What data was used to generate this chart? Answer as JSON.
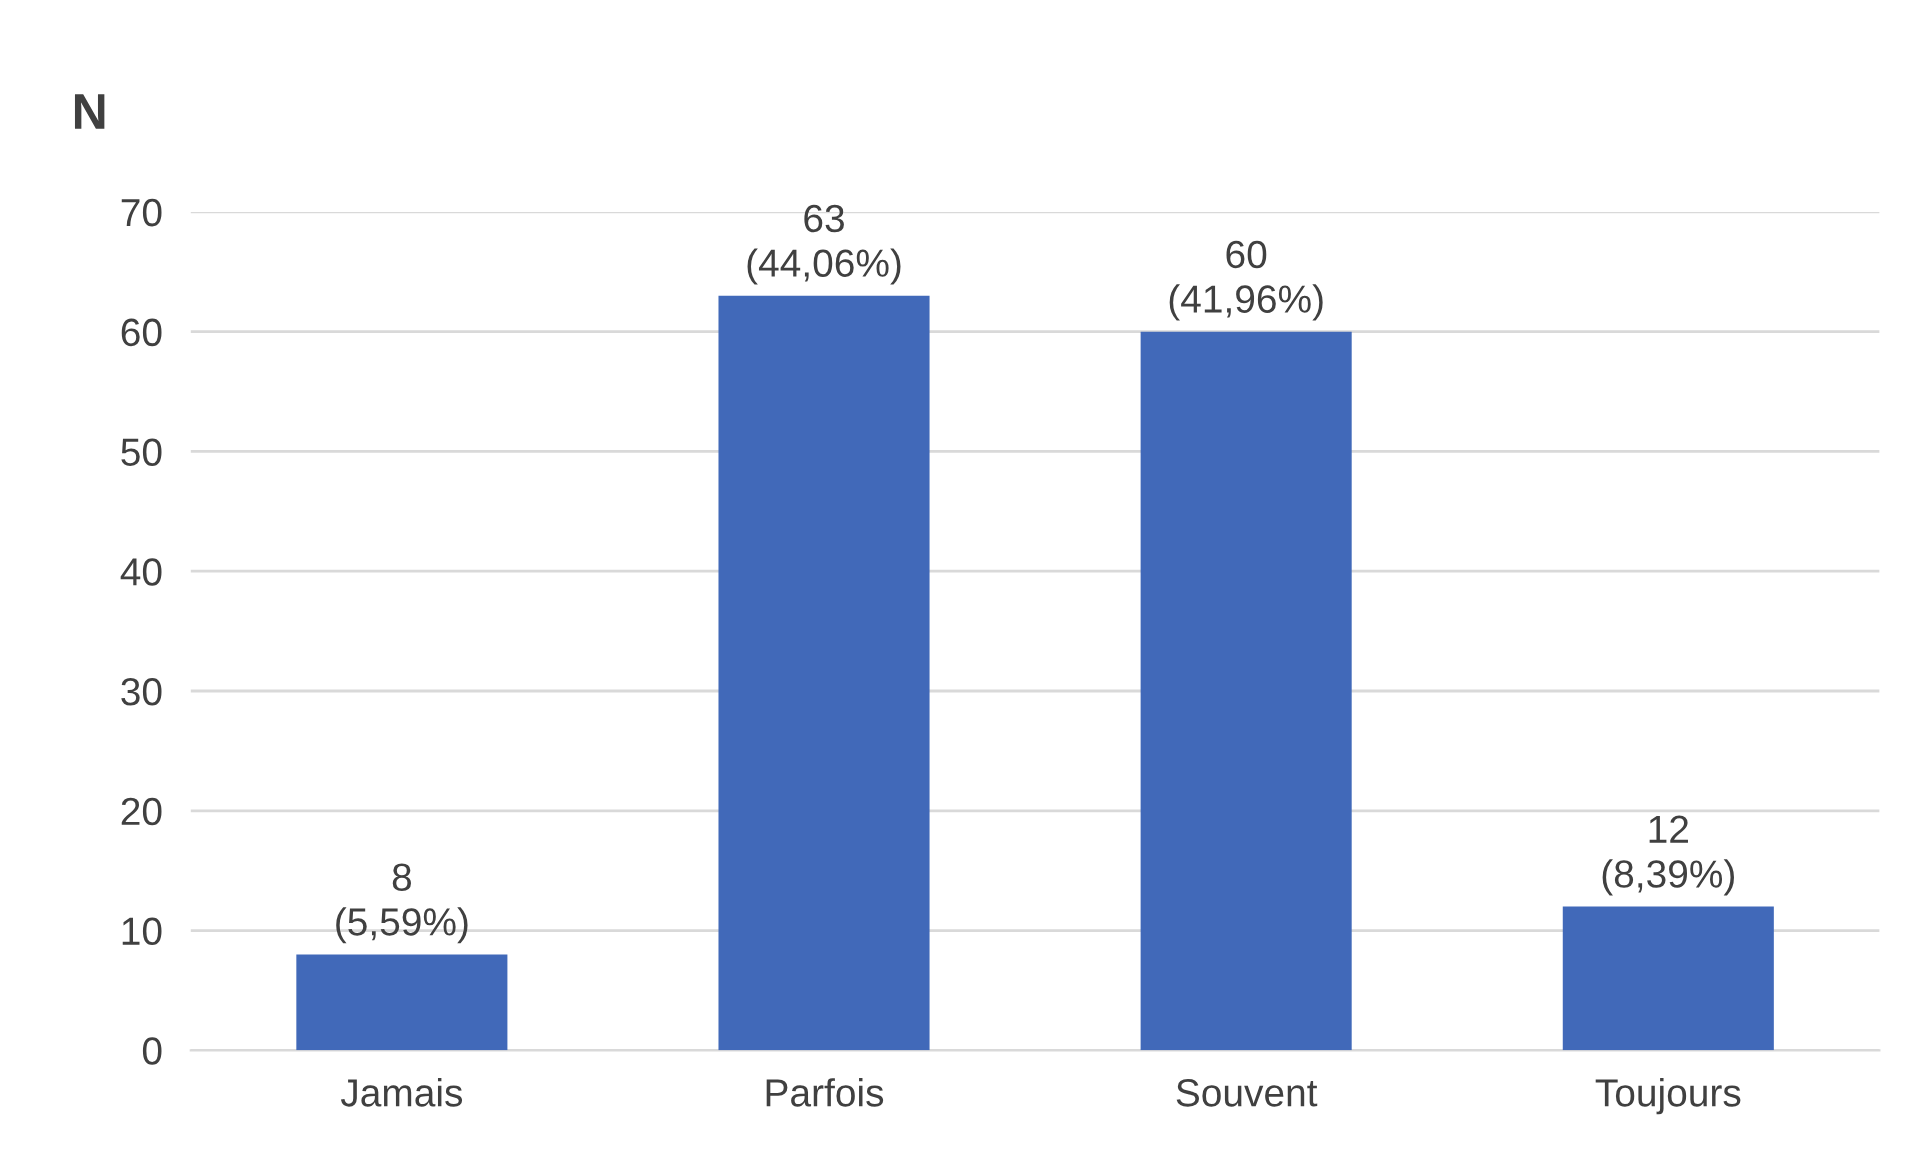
{
  "chart_data": {
    "type": "bar",
    "ylabel": "N",
    "categories": [
      "Jamais",
      "Parfois",
      "Souvent",
      "Toujours"
    ],
    "values": [
      8,
      63,
      60,
      12
    ],
    "value_labels": [
      "8\n(5,59%)",
      "63\n(44,06%)",
      "60\n(41,96%)",
      "12\n(8,39%)"
    ],
    "color": "#4169b9",
    "ylim": [
      0,
      70
    ],
    "yticks": [
      0,
      10,
      20,
      30,
      40,
      50,
      60,
      70
    ],
    "grid": "y"
  }
}
